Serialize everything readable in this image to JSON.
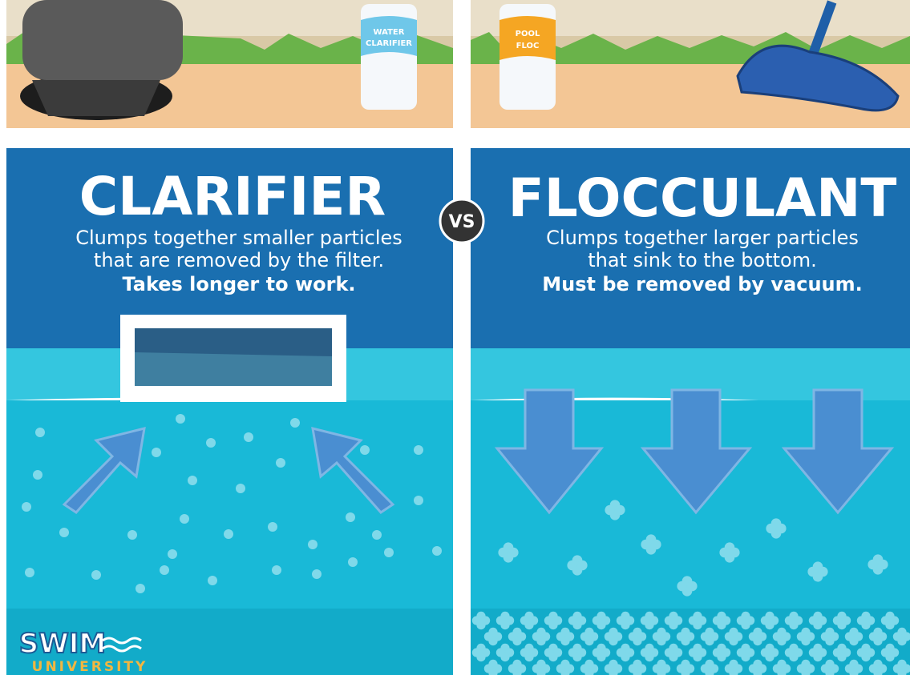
{
  "left": {
    "bottle_label": [
      "WATER",
      "CLARIFIER"
    ],
    "title": "CLARIFIER",
    "description": [
      "Clumps together smaller particles",
      "that are removed by the filter."
    ],
    "emphasis": "Takes longer to work."
  },
  "vs": "VS",
  "right": {
    "bottle_label": [
      "POOL",
      "FLOC"
    ],
    "title": "FLOCCULANT",
    "description": [
      "Clumps together larger particles",
      "that sink to the bottom."
    ],
    "emphasis": "Must be removed by vacuum."
  },
  "logo": {
    "name": "SWIM",
    "subtitle": "UNIVERSITY"
  }
}
